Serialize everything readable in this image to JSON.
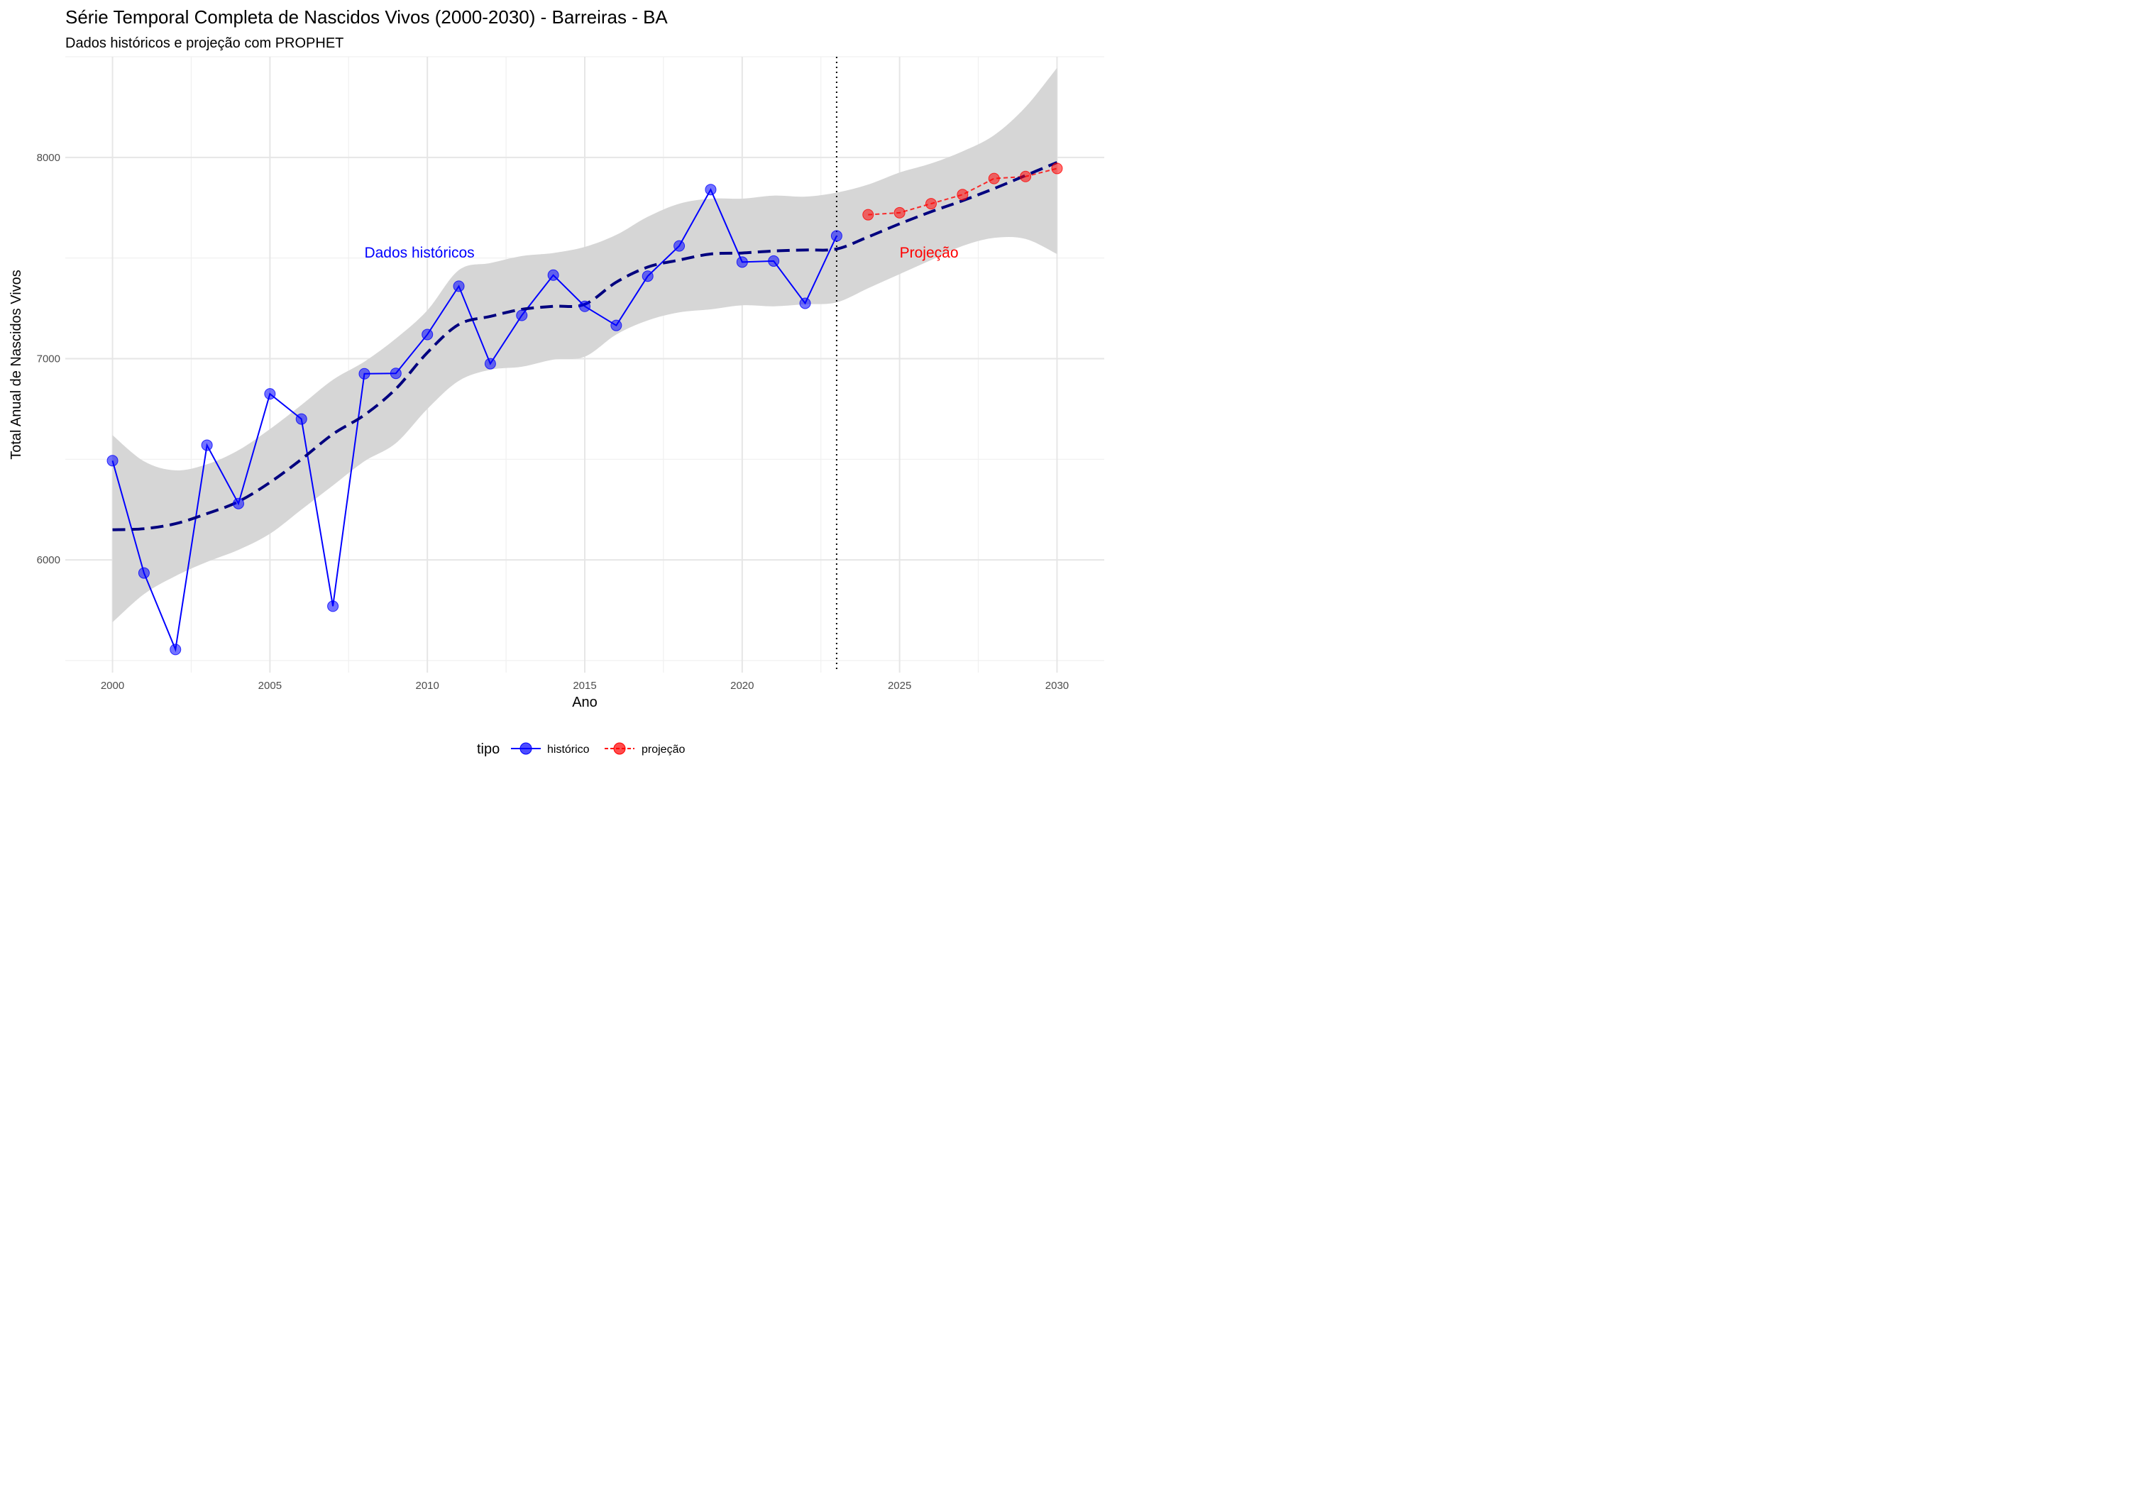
{
  "chart_data": {
    "type": "line",
    "title": "Série Temporal Completa de Nascidos Vivos (2000-2030) -  Barreiras - BA",
    "subtitle": "Dados históricos e projeção com PROPHET",
    "xlabel": "Ano",
    "ylabel": "Total Anual de Nascidos Vivos",
    "xlim": [
      1998.5,
      2031.5
    ],
    "ylim": [
      5440,
      8500
    ],
    "x_ticks": [
      2000,
      2005,
      2010,
      2015,
      2020,
      2025,
      2030
    ],
    "y_ticks": [
      6000,
      7000,
      8000
    ],
    "grid": true,
    "legend": {
      "title": "tipo",
      "position": "bottom",
      "entries": [
        "histórico",
        "projeção"
      ]
    },
    "series": [
      {
        "name": "histórico",
        "color": "#0000ff",
        "x": [
          2000,
          2001,
          2002,
          2003,
          2004,
          2005,
          2006,
          2007,
          2008,
          2009,
          2010,
          2011,
          2012,
          2013,
          2014,
          2015,
          2016,
          2017,
          2018,
          2019,
          2020,
          2021,
          2022,
          2023
        ],
        "y": [
          6493,
          5935,
          5555,
          6570,
          6280,
          6825,
          6700,
          5770,
          6925,
          6927,
          7120,
          7360,
          6975,
          7215,
          7415,
          7260,
          7165,
          7410,
          7560,
          7840,
          7480,
          7485,
          7275,
          7610
        ]
      },
      {
        "name": "projeção",
        "color": "#ff0000",
        "x": [
          2024,
          2025,
          2026,
          2027,
          2028,
          2029,
          2030
        ],
        "y": [
          7715,
          7725,
          7770,
          7815,
          7895,
          7905,
          7945
        ]
      }
    ],
    "trend": {
      "color": "#00007f",
      "x": [
        2000,
        2001,
        2002,
        2003,
        2004,
        2005,
        2006,
        2007,
        2008,
        2009,
        2010,
        2011,
        2012,
        2013,
        2014,
        2015,
        2016,
        2017,
        2018,
        2019,
        2020,
        2021,
        2022,
        2023,
        2024,
        2025,
        2026,
        2027,
        2028,
        2029,
        2030
      ],
      "y": [
        6150,
        6155,
        6180,
        6230,
        6290,
        6385,
        6500,
        6625,
        6720,
        6850,
        7030,
        7170,
        7210,
        7245,
        7260,
        7270,
        7380,
        7455,
        7490,
        7520,
        7525,
        7535,
        7540,
        7545,
        7605,
        7670,
        7730,
        7785,
        7845,
        7910,
        7975
      ],
      "lower": [
        5690,
        5830,
        5920,
        5990,
        6050,
        6130,
        6250,
        6370,
        6490,
        6580,
        6750,
        6890,
        6945,
        6960,
        6995,
        7010,
        7120,
        7190,
        7230,
        7245,
        7265,
        7260,
        7270,
        7280,
        7350,
        7420,
        7490,
        7560,
        7600,
        7595,
        7520
      ],
      "upper": [
        6620,
        6490,
        6445,
        6475,
        6545,
        6650,
        6770,
        6895,
        6985,
        7100,
        7240,
        7440,
        7475,
        7510,
        7525,
        7555,
        7615,
        7705,
        7770,
        7795,
        7795,
        7810,
        7805,
        7825,
        7865,
        7925,
        7970,
        8030,
        8110,
        8250,
        8445
      ]
    },
    "cutoff_x": 2023,
    "annotations": [
      {
        "text": "Dados históricos",
        "x": 2008,
        "y": 7530,
        "color": "#0000ff"
      },
      {
        "text": "Projeção",
        "x": 2025,
        "y": 7530,
        "color": "#ff0000"
      }
    ]
  }
}
